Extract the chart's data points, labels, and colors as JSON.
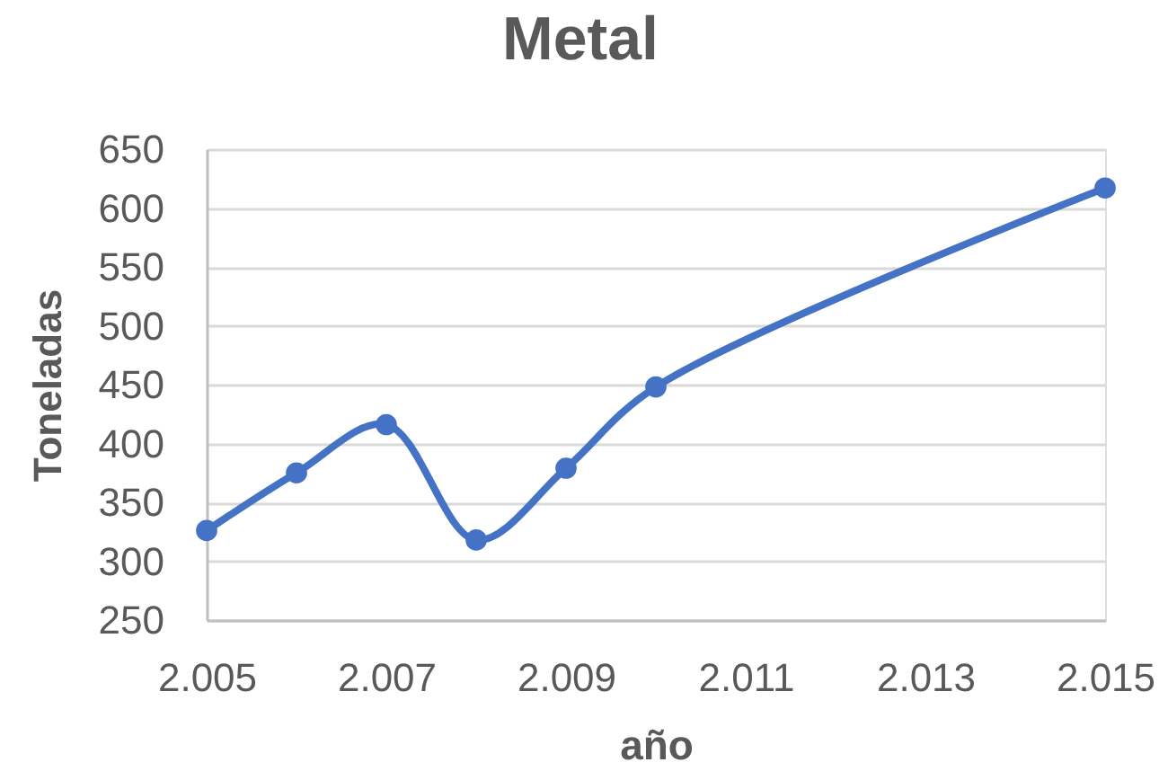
{
  "chart_data": {
    "type": "line",
    "title": "Metal",
    "xlabel": "año",
    "ylabel": "Toneladas",
    "x": [
      2005,
      2006,
      2007,
      2008,
      2009,
      2010,
      2015
    ],
    "series": [
      {
        "color": "#4472c4",
        "values": [
          326,
          375,
          416,
          318,
          379,
          448,
          617
        ]
      }
    ],
    "xlim": [
      2005,
      2015
    ],
    "xticks": [
      {
        "value": 2005,
        "label": "2.005"
      },
      {
        "value": 2007,
        "label": "2.007"
      },
      {
        "value": 2009,
        "label": "2.009"
      },
      {
        "value": 2011,
        "label": "2.011"
      },
      {
        "value": 2013,
        "label": "2.013"
      },
      {
        "value": 2015,
        "label": "2.015"
      }
    ],
    "ylim": [
      250,
      650
    ],
    "yticks": [
      250,
      300,
      350,
      400,
      450,
      500,
      550,
      600,
      650
    ],
    "grid": "y",
    "marker": "circle",
    "line_style": "solid"
  }
}
